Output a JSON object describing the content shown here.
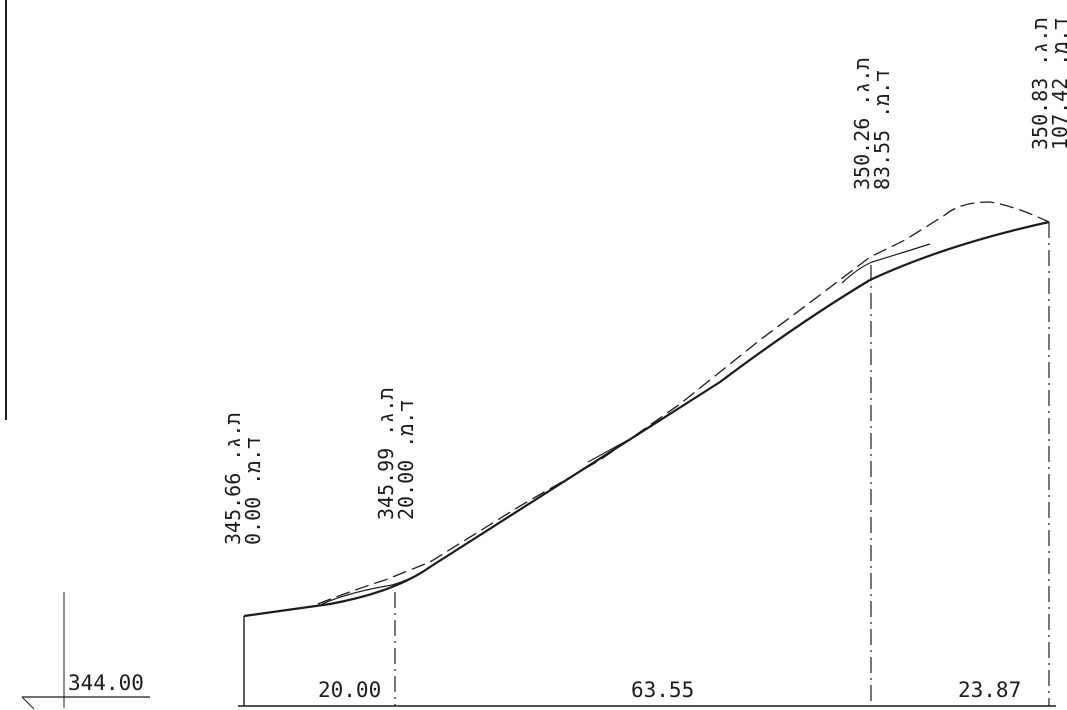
{
  "datum": {
    "value": "344.00"
  },
  "stations": [
    {
      "elev_line": "345.66 .ת.ג",
      "station_line": "0.00 .ד.מ"
    },
    {
      "elev_line": "345.99 .ת.ג",
      "station_line": "20.00 .ד.מ"
    },
    {
      "elev_line": "350.26 .ת.ג",
      "station_line": "83.55 .ד.מ"
    },
    {
      "elev_line": "350.83 .ת.ג",
      "station_line": "107.42 .ד.מ"
    }
  ],
  "segments": [
    {
      "length": "20.00"
    },
    {
      "length": "63.55"
    },
    {
      "length": "23.87"
    }
  ],
  "profile": {
    "stations_m": [
      0.0,
      20.0,
      83.55,
      107.42
    ],
    "elevations_m": [
      345.66,
      345.99,
      350.26,
      350.83
    ]
  },
  "colors": {
    "ink": "#1c1c1c",
    "paper": "#ffffff"
  }
}
